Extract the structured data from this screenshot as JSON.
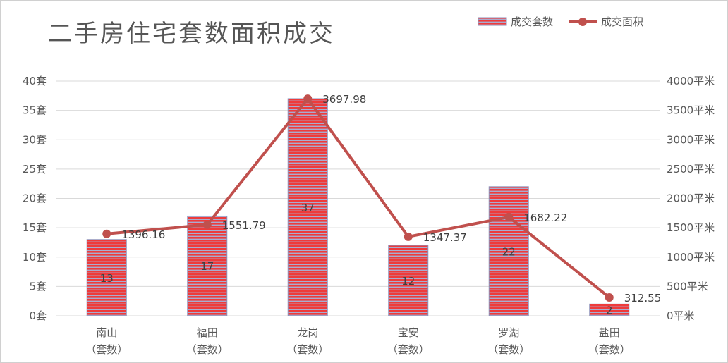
{
  "chart_data": {
    "type": "bar",
    "title": "二手房住宅套数面积成交",
    "categories": [
      "南山\n（套数）",
      "福田\n（套数）",
      "龙岗\n（套数）",
      "宝安\n（套数）",
      "罗湖\n（套数）",
      "盐田\n（套数）"
    ],
    "series": [
      {
        "name": "成交套数",
        "type": "bar",
        "axis": "left",
        "color": "#e84545",
        "stripe_color": "#9aa0c8",
        "values": [
          13,
          17,
          37,
          12,
          22,
          2
        ]
      },
      {
        "name": "成交面积",
        "type": "line",
        "axis": "right",
        "color": "#c0504d",
        "values": [
          1396.16,
          1551.79,
          3697.98,
          1347.37,
          1682.22,
          312.55
        ]
      }
    ],
    "y_left": {
      "min": 0,
      "max": 40,
      "step": 5,
      "unit": "套"
    },
    "y_right": {
      "min": 0,
      "max": 4000,
      "step": 500,
      "unit": "平米"
    },
    "grid": true,
    "legend_position": "top-right"
  }
}
